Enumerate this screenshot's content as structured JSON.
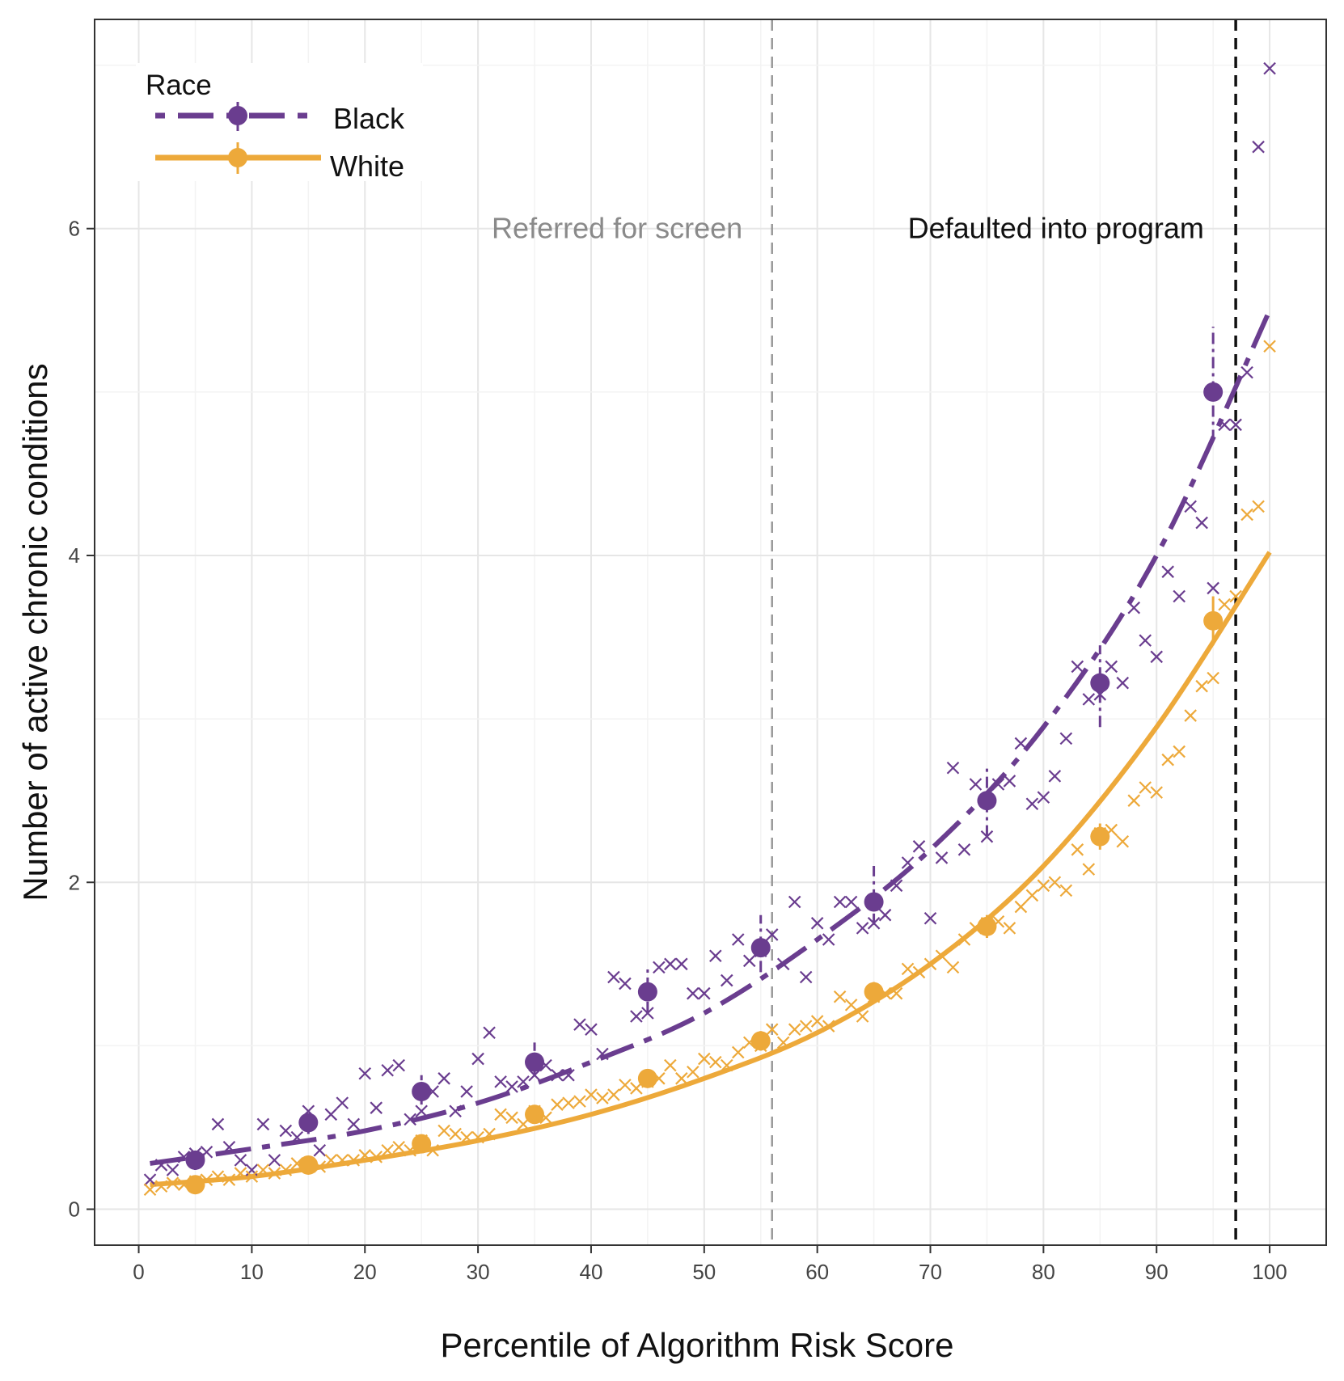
{
  "chart_data": {
    "type": "scatter",
    "xlabel": "Percentile of Algorithm Risk Score",
    "ylabel": "Number of active chronic conditions",
    "xlim": [
      -3.9,
      105
    ],
    "ylim": [
      -0.22,
      7.28
    ],
    "xticks": [
      0,
      10,
      20,
      30,
      40,
      50,
      60,
      70,
      80,
      90,
      100
    ],
    "yticks": [
      0,
      2,
      4,
      6
    ],
    "grid": true,
    "legend": {
      "title": "Race",
      "placement": "top-left"
    },
    "colors": {
      "Black": "#6a3d8f",
      "White": "#eda93a"
    },
    "vlines": [
      {
        "x": 56,
        "label": "Referred for screen",
        "label_x": 42.3,
        "label_y": 6.0,
        "color": "#999999"
      },
      {
        "x": 97,
        "label": "Defaulted into program",
        "label_x": 81.1,
        "label_y": 6.0,
        "color": "#111111"
      }
    ],
    "series": [
      {
        "name": "Black",
        "line_style": "dash-dot",
        "binned": {
          "x": [
            5,
            15,
            25,
            35,
            45,
            55,
            65,
            75,
            85,
            95
          ],
          "y": [
            0.3,
            0.53,
            0.72,
            0.9,
            1.33,
            1.6,
            1.88,
            2.5,
            3.22,
            5.0
          ],
          "lo": [
            0.24,
            0.46,
            0.64,
            0.82,
            1.2,
            1.45,
            1.74,
            2.28,
            2.95,
            4.7
          ],
          "hi": [
            0.36,
            0.6,
            0.82,
            1.02,
            1.47,
            1.8,
            2.1,
            2.72,
            3.45,
            5.4
          ]
        },
        "fit": {
          "x": [
            1,
            10,
            20,
            30,
            40,
            50,
            60,
            70,
            80,
            90,
            100
          ],
          "y": [
            0.28,
            0.37,
            0.48,
            0.65,
            0.9,
            1.2,
            1.65,
            2.2,
            2.95,
            4.0,
            5.5
          ]
        },
        "points": [
          0.18,
          0.27,
          0.24,
          0.32,
          0.34,
          0.35,
          0.52,
          0.38,
          0.3,
          0.24,
          0.52,
          0.3,
          0.48,
          0.44,
          0.6,
          0.36,
          0.58,
          0.65,
          0.52,
          0.83,
          0.62,
          0.85,
          0.88,
          0.55,
          0.6,
          0.72,
          0.8,
          0.6,
          0.72,
          0.92,
          1.08,
          0.78,
          0.75,
          0.78,
          0.82,
          0.88,
          0.82,
          0.82,
          1.13,
          1.1,
          0.95,
          1.42,
          1.38,
          1.18,
          1.2,
          1.48,
          1.5,
          1.5,
          1.32,
          1.32,
          1.55,
          1.4,
          1.65,
          1.52,
          1.58,
          1.68,
          1.5,
          1.88,
          1.42,
          1.75,
          1.65,
          1.88,
          1.88,
          1.72,
          1.75,
          1.8,
          1.98,
          2.12,
          2.22,
          1.78,
          2.15,
          2.7,
          2.2,
          2.6,
          2.28,
          2.6,
          2.62,
          2.85,
          2.48,
          2.52,
          2.65,
          2.88,
          3.32,
          3.12,
          3.15,
          3.32,
          3.22,
          3.68,
          3.48,
          3.38,
          3.9,
          3.75,
          4.3,
          4.2,
          3.8,
          4.8,
          4.8,
          5.12,
          6.5,
          6.98
        ]
      },
      {
        "name": "White",
        "line_style": "solid",
        "binned": {
          "x": [
            5,
            15,
            25,
            35,
            45,
            55,
            65,
            75,
            85,
            95
          ],
          "y": [
            0.15,
            0.27,
            0.4,
            0.58,
            0.8,
            1.03,
            1.33,
            1.73,
            2.28,
            3.6
          ],
          "lo": [
            0.11,
            0.22,
            0.35,
            0.53,
            0.75,
            0.97,
            1.27,
            1.66,
            2.2,
            3.45
          ],
          "hi": [
            0.19,
            0.32,
            0.45,
            0.63,
            0.85,
            1.09,
            1.39,
            1.8,
            2.36,
            3.75
          ]
        },
        "fit": {
          "x": [
            1,
            10,
            20,
            30,
            40,
            50,
            60,
            70,
            80,
            90,
            100
          ],
          "y": [
            0.15,
            0.2,
            0.3,
            0.42,
            0.58,
            0.8,
            1.08,
            1.5,
            2.1,
            2.95,
            4.02
          ]
        },
        "points": [
          0.12,
          0.14,
          0.16,
          0.15,
          0.17,
          0.18,
          0.2,
          0.18,
          0.22,
          0.2,
          0.24,
          0.22,
          0.24,
          0.28,
          0.26,
          0.26,
          0.3,
          0.3,
          0.3,
          0.33,
          0.32,
          0.36,
          0.38,
          0.36,
          0.42,
          0.36,
          0.48,
          0.46,
          0.44,
          0.44,
          0.46,
          0.58,
          0.56,
          0.52,
          0.6,
          0.56,
          0.64,
          0.65,
          0.66,
          0.7,
          0.68,
          0.7,
          0.76,
          0.74,
          0.78,
          0.8,
          0.88,
          0.8,
          0.84,
          0.92,
          0.9,
          0.88,
          0.96,
          1.02,
          1.0,
          1.1,
          1.02,
          1.1,
          1.12,
          1.15,
          1.12,
          1.3,
          1.25,
          1.18,
          1.3,
          1.32,
          1.32,
          1.47,
          1.45,
          1.5,
          1.55,
          1.48,
          1.65,
          1.72,
          1.75,
          1.76,
          1.72,
          1.85,
          1.92,
          1.98,
          2.0,
          1.95,
          2.2,
          2.08,
          2.3,
          2.32,
          2.25,
          2.5,
          2.58,
          2.55,
          2.75,
          2.8,
          3.02,
          3.2,
          3.25,
          3.7,
          3.75,
          4.25,
          4.3,
          5.28
        ]
      }
    ]
  }
}
